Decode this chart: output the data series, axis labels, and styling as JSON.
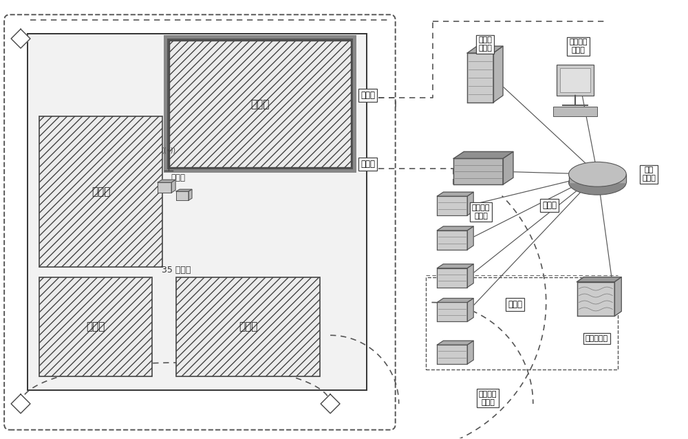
{
  "bg": "white",
  "fig_w": 10.0,
  "fig_h": 6.38,
  "dpi": 100,
  "labels": {
    "equip1": "设备区",
    "equip2": "设备区",
    "equip3": "设备区",
    "equip4": "设备区",
    "office": "办公室",
    "area_size": "35 平方米",
    "video_line1": "视频线",
    "comm_line": "通信线",
    "net_line": "网络线",
    "video_line2": "视频线",
    "db_server": "数据库\n服务器",
    "monitor_ws": "监视管理\n工作站",
    "net_switch": "网络\n交换机",
    "pos_engine": "位置引擎\n服务器",
    "video_server": "视频服务器",
    "img_proc": "图像识别\n处理器"
  }
}
